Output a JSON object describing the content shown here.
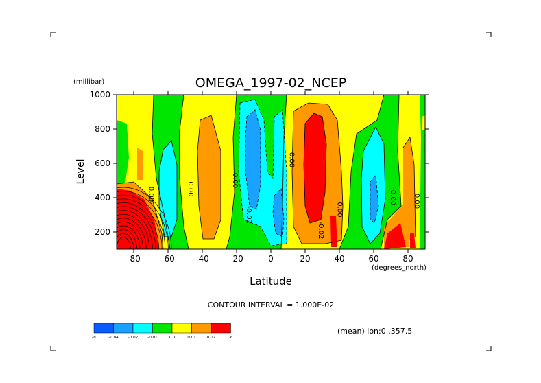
{
  "chart_data": {
    "type": "heatmap",
    "title": "OMEGA_1997-02_NCEP",
    "xlabel": "Latitude",
    "x_unit": "(degrees_north)",
    "ylabel": "Level",
    "y_unit": "(millibar)",
    "xlim": [
      -90,
      90
    ],
    "ylim": [
      1000,
      100
    ],
    "x_ticks": [
      -80,
      -60,
      -40,
      -20,
      0,
      20,
      40,
      60,
      80
    ],
    "y_ticks": [
      1000,
      800,
      600,
      400,
      200
    ],
    "x_tick_labels": [
      "-80",
      "-60",
      "-40",
      "-20",
      "0",
      "20",
      "40",
      "60",
      "80"
    ],
    "y_tick_labels": [
      "1000",
      "800",
      "600",
      "400",
      "200"
    ],
    "contour_interval_text": "CONTOUR INTERVAL = 1.000E-02",
    "subtitle_right": "(mean) lon:0..357.5",
    "contour_labels": [
      {
        "text": "0.00",
        "lat": -71,
        "lev": 420
      },
      {
        "text": "0.00",
        "lat": -48,
        "lev": 450
      },
      {
        "text": "0.00",
        "lat": -22,
        "lev": 500
      },
      {
        "text": "-0.02",
        "lat": -14,
        "lev": 300
      },
      {
        "text": "0.00",
        "lat": 11,
        "lev": 620
      },
      {
        "text": "-0.02",
        "lat": 28,
        "lev": 210
      },
      {
        "text": "0.00",
        "lat": 39,
        "lev": 330
      },
      {
        "text": "0.00",
        "lat": 70,
        "lev": 400
      },
      {
        "text": "0.00",
        "lat": 84,
        "lev": 380
      }
    ],
    "legend": {
      "colors": [
        "#0a5cff",
        "#19a2ff",
        "#00ffff",
        "#00e600",
        "#ffff00",
        "#ff9900",
        "#ff0000"
      ],
      "labels": [
        "-∞",
        "-0.04",
        "-0.02",
        "-0.01",
        "0.0",
        "0.01",
        "0.02",
        "∞"
      ]
    }
  }
}
